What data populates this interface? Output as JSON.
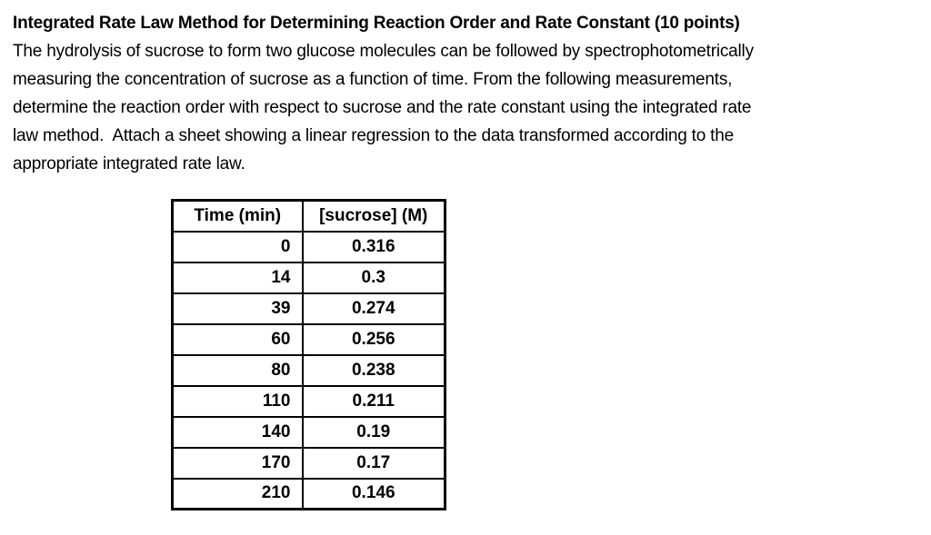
{
  "document": {
    "title": "Integrated Rate Law Method for Determining Reaction Order and Rate Constant (10 points)",
    "body_lines": [
      "The hydrolysis of sucrose to form two glucose molecules can be followed by spectrophotometrically",
      "measuring the concentration of sucrose as a function of time. From the following measurements,",
      "determine the reaction order with respect to sucrose and the rate constant using the integrated rate",
      "law method.  Attach a sheet showing a linear regression to the data transformed according to the",
      "appropriate integrated rate law."
    ]
  },
  "table": {
    "headers": {
      "time": "Time (min)",
      "sucrose": "[sucrose] (M)"
    },
    "rows": [
      {
        "time": "0",
        "conc": "0.316"
      },
      {
        "time": "14",
        "conc": "0.3"
      },
      {
        "time": "39",
        "conc": "0.274"
      },
      {
        "time": "60",
        "conc": "0.256"
      },
      {
        "time": "80",
        "conc": "0.238"
      },
      {
        "time": "110",
        "conc": "0.211"
      },
      {
        "time": "140",
        "conc": "0.19"
      },
      {
        "time": "170",
        "conc": "0.17"
      },
      {
        "time": "210",
        "conc": "0.146"
      }
    ]
  },
  "colors": {
    "text": "#000000",
    "background": "#ffffff",
    "table_border": "#000000"
  }
}
